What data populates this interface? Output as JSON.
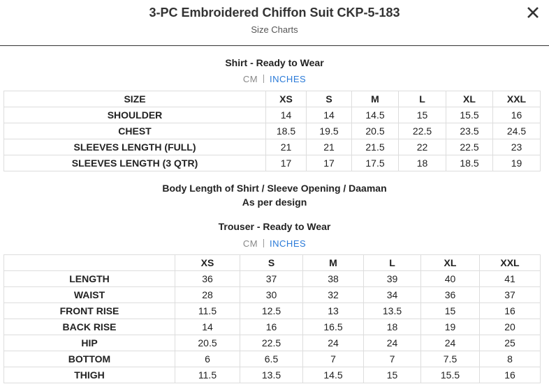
{
  "header": {
    "title": "3-PC Embroidered Chiffon Suit CKP-5-183",
    "subtitle": "Size Charts"
  },
  "shirt": {
    "title": "Shirt - Ready to Wear",
    "units": [
      "CM",
      "INCHES"
    ],
    "columns": [
      "SIZE",
      "XS",
      "S",
      "M",
      "L",
      "XL",
      "XXL"
    ],
    "rows": [
      [
        "SHOULDER",
        14,
        14,
        14.5,
        15,
        15.5,
        16
      ],
      [
        "CHEST",
        18.5,
        19.5,
        20.5,
        22.5,
        23.5,
        24.5
      ],
      [
        "SLEEVES LENGTH (FULL)",
        21,
        21,
        21.5,
        22,
        22.5,
        23
      ],
      [
        "SLEEVES LENGTH (3 QTR)",
        17,
        17,
        17.5,
        18,
        18.5,
        19
      ]
    ]
  },
  "note": {
    "line1": "Body Length of Shirt / Sleeve Opening / Daaman",
    "line2": "As per design"
  },
  "trouser": {
    "title": "Trouser - Ready to Wear",
    "units": [
      "CM",
      "INCHES"
    ],
    "columns": [
      "XS",
      "S",
      "M",
      "L",
      "XL",
      "XXL"
    ],
    "rows": [
      [
        "LENGTH",
        36,
        37,
        38,
        39,
        40,
        41
      ],
      [
        "WAIST",
        28,
        30,
        32,
        34,
        36,
        37
      ],
      [
        "FRONT RISE",
        11.5,
        12.5,
        13,
        13.5,
        15,
        16
      ],
      [
        "BACK RISE",
        14,
        16,
        16.5,
        18,
        19,
        20
      ],
      [
        "HIP",
        20.5,
        22.5,
        24,
        24,
        24,
        25
      ],
      [
        "BOTTOM",
        6,
        6.5,
        7,
        7,
        7.5,
        8
      ],
      [
        "THIGH",
        11.5,
        13.5,
        14.5,
        15,
        15.5,
        16
      ]
    ]
  }
}
